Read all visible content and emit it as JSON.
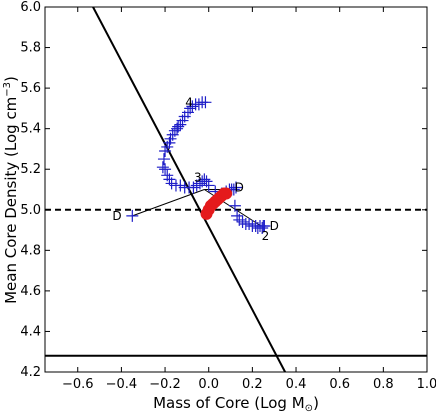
{
  "chart_data": {
    "type": "scatter",
    "xlabel": "Mass of Core (Log M",
    "xlabel_sub": "⊙",
    "xlabel_close": ")",
    "ylabel": "Mean Core Density (Log cm",
    "ylabel_sup": "−3",
    "ylabel_close": ")",
    "xlim": [
      -0.75,
      1.0
    ],
    "ylim": [
      4.2,
      6.0
    ],
    "xticks": [
      -0.6,
      -0.4,
      -0.2,
      0.0,
      0.2,
      0.4,
      0.6,
      0.8,
      1.0
    ],
    "xtick_labels": [
      "−0.6",
      "−0.4",
      "−0.2",
      "0.0",
      "0.2",
      "0.4",
      "0.6",
      "0.8",
      "1.0"
    ],
    "yticks": [
      4.2,
      4.4,
      4.6,
      4.8,
      5.0,
      5.2,
      5.4,
      5.6,
      5.8,
      6.0
    ],
    "ytick_labels": [
      "4.2",
      "4.4",
      "4.6",
      "4.8",
      "5.0",
      "5.2",
      "5.4",
      "5.6",
      "5.8",
      "6.0"
    ],
    "grid": false,
    "colors": {
      "blue": "#1f1fc8",
      "red": "#e41a1c",
      "black": "#000000"
    },
    "lines": [
      {
        "style": "solid",
        "x": [
          -0.53,
          0.35
        ],
        "y": [
          6.0,
          4.2
        ]
      },
      {
        "style": "solid",
        "x": [
          -0.75,
          1.0
        ],
        "y": [
          4.28,
          4.28
        ]
      },
      {
        "style": "dashed",
        "x": [
          -0.75,
          1.0
        ],
        "y": [
          5.0,
          5.0
        ]
      },
      {
        "style": "thin",
        "x": [
          -0.35,
          -0.02
        ],
        "y": [
          4.97,
          5.1
        ]
      },
      {
        "style": "thin",
        "x": [
          -0.02,
          0.11
        ],
        "y": [
          5.1,
          5.1
        ]
      },
      {
        "style": "thin",
        "x": [
          -0.02,
          0.24
        ],
        "y": [
          5.1,
          4.92
        ]
      }
    ],
    "series": [
      {
        "marker": "plus",
        "x": [
          -0.35,
          -0.21,
          -0.205,
          -0.2,
          -0.19,
          -0.18,
          -0.175,
          -0.165,
          -0.155,
          -0.145,
          -0.14,
          -0.13,
          -0.12,
          -0.11,
          -0.095,
          -0.085,
          -0.075,
          -0.06,
          -0.045,
          -0.03,
          -0.015,
          -0.07,
          -0.055,
          -0.04,
          -0.03,
          -0.02,
          -0.01,
          0.0,
          0.03,
          0.06,
          0.08,
          0.095,
          0.105,
          0.115,
          0.125,
          0.12,
          0.13,
          0.14,
          0.155,
          0.17,
          0.185,
          0.2,
          0.215,
          0.225,
          0.235,
          0.245,
          0.25,
          0.255
        ],
        "y": [
          4.97,
          5.21,
          5.25,
          5.29,
          5.31,
          5.33,
          5.35,
          5.37,
          5.39,
          5.4,
          5.41,
          5.42,
          5.44,
          5.46,
          5.48,
          5.5,
          5.51,
          5.52,
          5.52,
          5.53,
          5.53,
          5.11,
          5.12,
          5.13,
          5.14,
          5.15,
          5.14,
          5.12,
          5.09,
          5.08,
          5.09,
          5.1,
          5.1,
          5.1,
          5.11,
          5.02,
          4.97,
          4.95,
          4.94,
          4.93,
          4.93,
          4.92,
          4.92,
          4.91,
          4.92,
          4.91,
          4.92,
          4.92
        ]
      },
      {
        "marker": "plus",
        "x": [
          -0.2,
          -0.19,
          -0.18,
          -0.17,
          -0.15,
          -0.13,
          -0.11,
          -0.09
        ],
        "y": [
          5.2,
          5.17,
          5.15,
          5.13,
          5.12,
          5.12,
          5.11,
          5.11
        ]
      },
      {
        "marker": "circle",
        "x": [
          -0.01,
          0.0,
          0.01,
          0.02,
          0.03,
          0.04,
          0.05,
          0.06,
          0.07,
          0.08
        ],
        "y": [
          4.98,
          5.0,
          5.02,
          5.03,
          5.04,
          5.05,
          5.06,
          5.07,
          5.08,
          5.08
        ]
      }
    ],
    "annotations": [
      {
        "text": "4",
        "x": -0.09,
        "y": 5.53
      },
      {
        "text": "3",
        "x": -0.05,
        "y": 5.16
      },
      {
        "text": "D",
        "x": -0.42,
        "y": 4.97
      },
      {
        "text": "D",
        "x": 0.14,
        "y": 5.11
      },
      {
        "text": "D",
        "x": 0.3,
        "y": 4.92
      },
      {
        "text": "2",
        "x": 0.26,
        "y": 4.87
      }
    ]
  }
}
